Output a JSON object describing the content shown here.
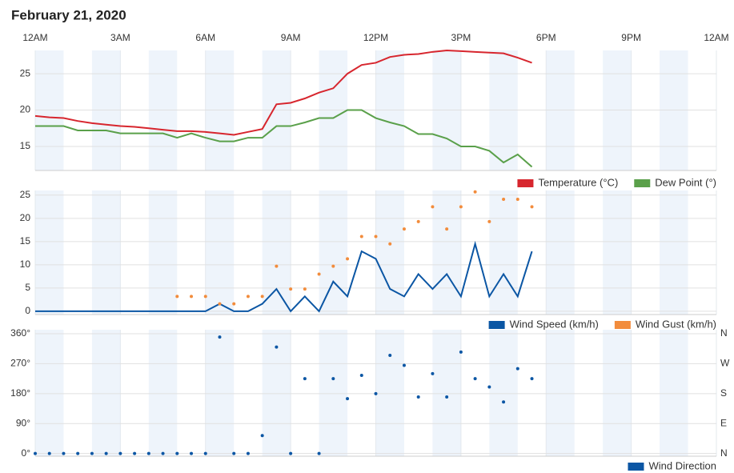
{
  "chart_data": [
    {
      "type": "line",
      "title": "February 21, 2020",
      "xlim": [
        0,
        24
      ],
      "xticks": [
        {
          "value": 0,
          "label": "12AM"
        },
        {
          "value": 3,
          "label": "3AM"
        },
        {
          "value": 6,
          "label": "6AM"
        },
        {
          "value": 9,
          "label": "9AM"
        },
        {
          "value": 12,
          "label": "12PM"
        },
        {
          "value": 15,
          "label": "3PM"
        },
        {
          "value": 18,
          "label": "6PM"
        },
        {
          "value": 21,
          "label": "9PM"
        },
        {
          "value": 24,
          "label": "12AM"
        }
      ],
      "x": [
        0,
        0.5,
        1,
        1.5,
        2,
        2.5,
        3,
        3.5,
        4,
        4.5,
        5,
        5.5,
        6,
        6.5,
        7,
        7.5,
        8,
        8.5,
        9,
        9.5,
        10,
        10.5,
        11,
        11.5,
        12,
        12.5,
        13,
        13.5,
        14,
        14.5,
        15,
        15.5,
        16,
        16.5,
        17,
        17.5
      ],
      "ylim": [
        11.7,
        28.2
      ],
      "yticks": [
        15,
        20,
        25
      ],
      "grid": true,
      "legend": "bottom-right",
      "series": [
        {
          "name": "Temperature (°C)",
          "color": "#d7262e",
          "marker": "line",
          "values": [
            19.2,
            19,
            18.9,
            18.5,
            18.2,
            18,
            17.8,
            17.7,
            17.5,
            17.3,
            17.1,
            17.1,
            17,
            16.8,
            16.6,
            17,
            17.4,
            20.8,
            21,
            21.6,
            22.4,
            23,
            25,
            26.2,
            26.5,
            27.3,
            27.6,
            27.7,
            28,
            28.2,
            28.1,
            28,
            27.9,
            27.8,
            27.2,
            26.5
          ]
        },
        {
          "name": "Dew Point (°)",
          "color": "#5aa04a",
          "marker": "line",
          "values": [
            17.8,
            17.8,
            17.8,
            17.2,
            17.2,
            17.2,
            16.8,
            16.8,
            16.8,
            16.8,
            16.2,
            16.8,
            16.2,
            15.7,
            15.7,
            16.2,
            16.2,
            17.8,
            17.8,
            18.3,
            18.9,
            18.9,
            20,
            20,
            18.9,
            18.3,
            17.8,
            16.7,
            16.7,
            16.1,
            15,
            15,
            14.4,
            12.8,
            13.9,
            12.2
          ]
        }
      ]
    },
    {
      "type": "line",
      "x": [
        0,
        0.5,
        1,
        1.5,
        2,
        2.5,
        3,
        3.5,
        4,
        4.5,
        5,
        5.5,
        6,
        6.5,
        7,
        7.5,
        8,
        8.5,
        9,
        9.5,
        10,
        10.5,
        11,
        11.5,
        12,
        12.5,
        13,
        13.5,
        14,
        14.5,
        15,
        15.5,
        16,
        16.5,
        17,
        17.5
      ],
      "ylim": [
        -0.7,
        26
      ],
      "yticks": [
        0,
        5,
        10,
        15,
        20,
        25
      ],
      "grid": true,
      "legend": "bottom-right",
      "series": [
        {
          "name": "Wind Speed (km/h)",
          "color": "#0b56a4",
          "marker": "line",
          "values": [
            0,
            0,
            0,
            0,
            0,
            0,
            0,
            0,
            0,
            0,
            0,
            0,
            0,
            1.6,
            0,
            0,
            1.6,
            4.8,
            0,
            3.2,
            0,
            6.4,
            3.2,
            12.9,
            11.3,
            4.8,
            3.2,
            8,
            4.8,
            8,
            3.2,
            14.5,
            3.2,
            8,
            3.2,
            12.9
          ]
        },
        {
          "name": "Wind Gust (km/h)",
          "color": "#f28c3c",
          "marker": "dot",
          "values": [
            null,
            null,
            null,
            null,
            null,
            null,
            null,
            null,
            null,
            null,
            3.2,
            3.2,
            3.2,
            1.6,
            1.6,
            3.2,
            3.2,
            9.7,
            4.8,
            4.8,
            8,
            9.7,
            11.3,
            16.1,
            16.1,
            14.5,
            17.7,
            19.3,
            22.5,
            17.7,
            22.5,
            25.7,
            19.3,
            24.1,
            24.1,
            22.5
          ]
        }
      ]
    },
    {
      "type": "scatter",
      "x": [
        0,
        0.5,
        1,
        1.5,
        2,
        2.5,
        3,
        3.5,
        4,
        4.5,
        5,
        5.5,
        6,
        6.5,
        7,
        7.5,
        8,
        8.5,
        9,
        9.5,
        10,
        10.5,
        11,
        11.5,
        12,
        12.5,
        13,
        13.5,
        14,
        14.5,
        15,
        15.5,
        16,
        16.5,
        17,
        17.5
      ],
      "ylim": [
        -8,
        372
      ],
      "yticks": [
        {
          "value": 0,
          "label": "0°"
        },
        {
          "value": 90,
          "label": "90°"
        },
        {
          "value": 180,
          "label": "180°"
        },
        {
          "value": 270,
          "label": "270°"
        },
        {
          "value": 360,
          "label": "360°"
        }
      ],
      "y2lim": [
        -8,
        372
      ],
      "y2ticks": [
        {
          "value": 0,
          "label": "N"
        },
        {
          "value": 90,
          "label": "E"
        },
        {
          "value": 180,
          "label": "S"
        },
        {
          "value": 270,
          "label": "W"
        },
        {
          "value": 360,
          "label": "N"
        }
      ],
      "grid": true,
      "legend": "bottom-right",
      "series": [
        {
          "name": "Wind Direction",
          "color": "#0b56a4",
          "marker": "dot",
          "values": [
            0,
            0,
            0,
            0,
            0,
            0,
            0,
            0,
            0,
            0,
            0,
            0,
            0,
            350,
            0,
            0,
            54,
            320,
            0,
            225,
            0,
            225,
            165,
            235,
            180,
            295,
            265,
            170,
            240,
            170,
            305,
            225,
            200,
            155,
            255,
            225
          ]
        }
      ]
    }
  ]
}
